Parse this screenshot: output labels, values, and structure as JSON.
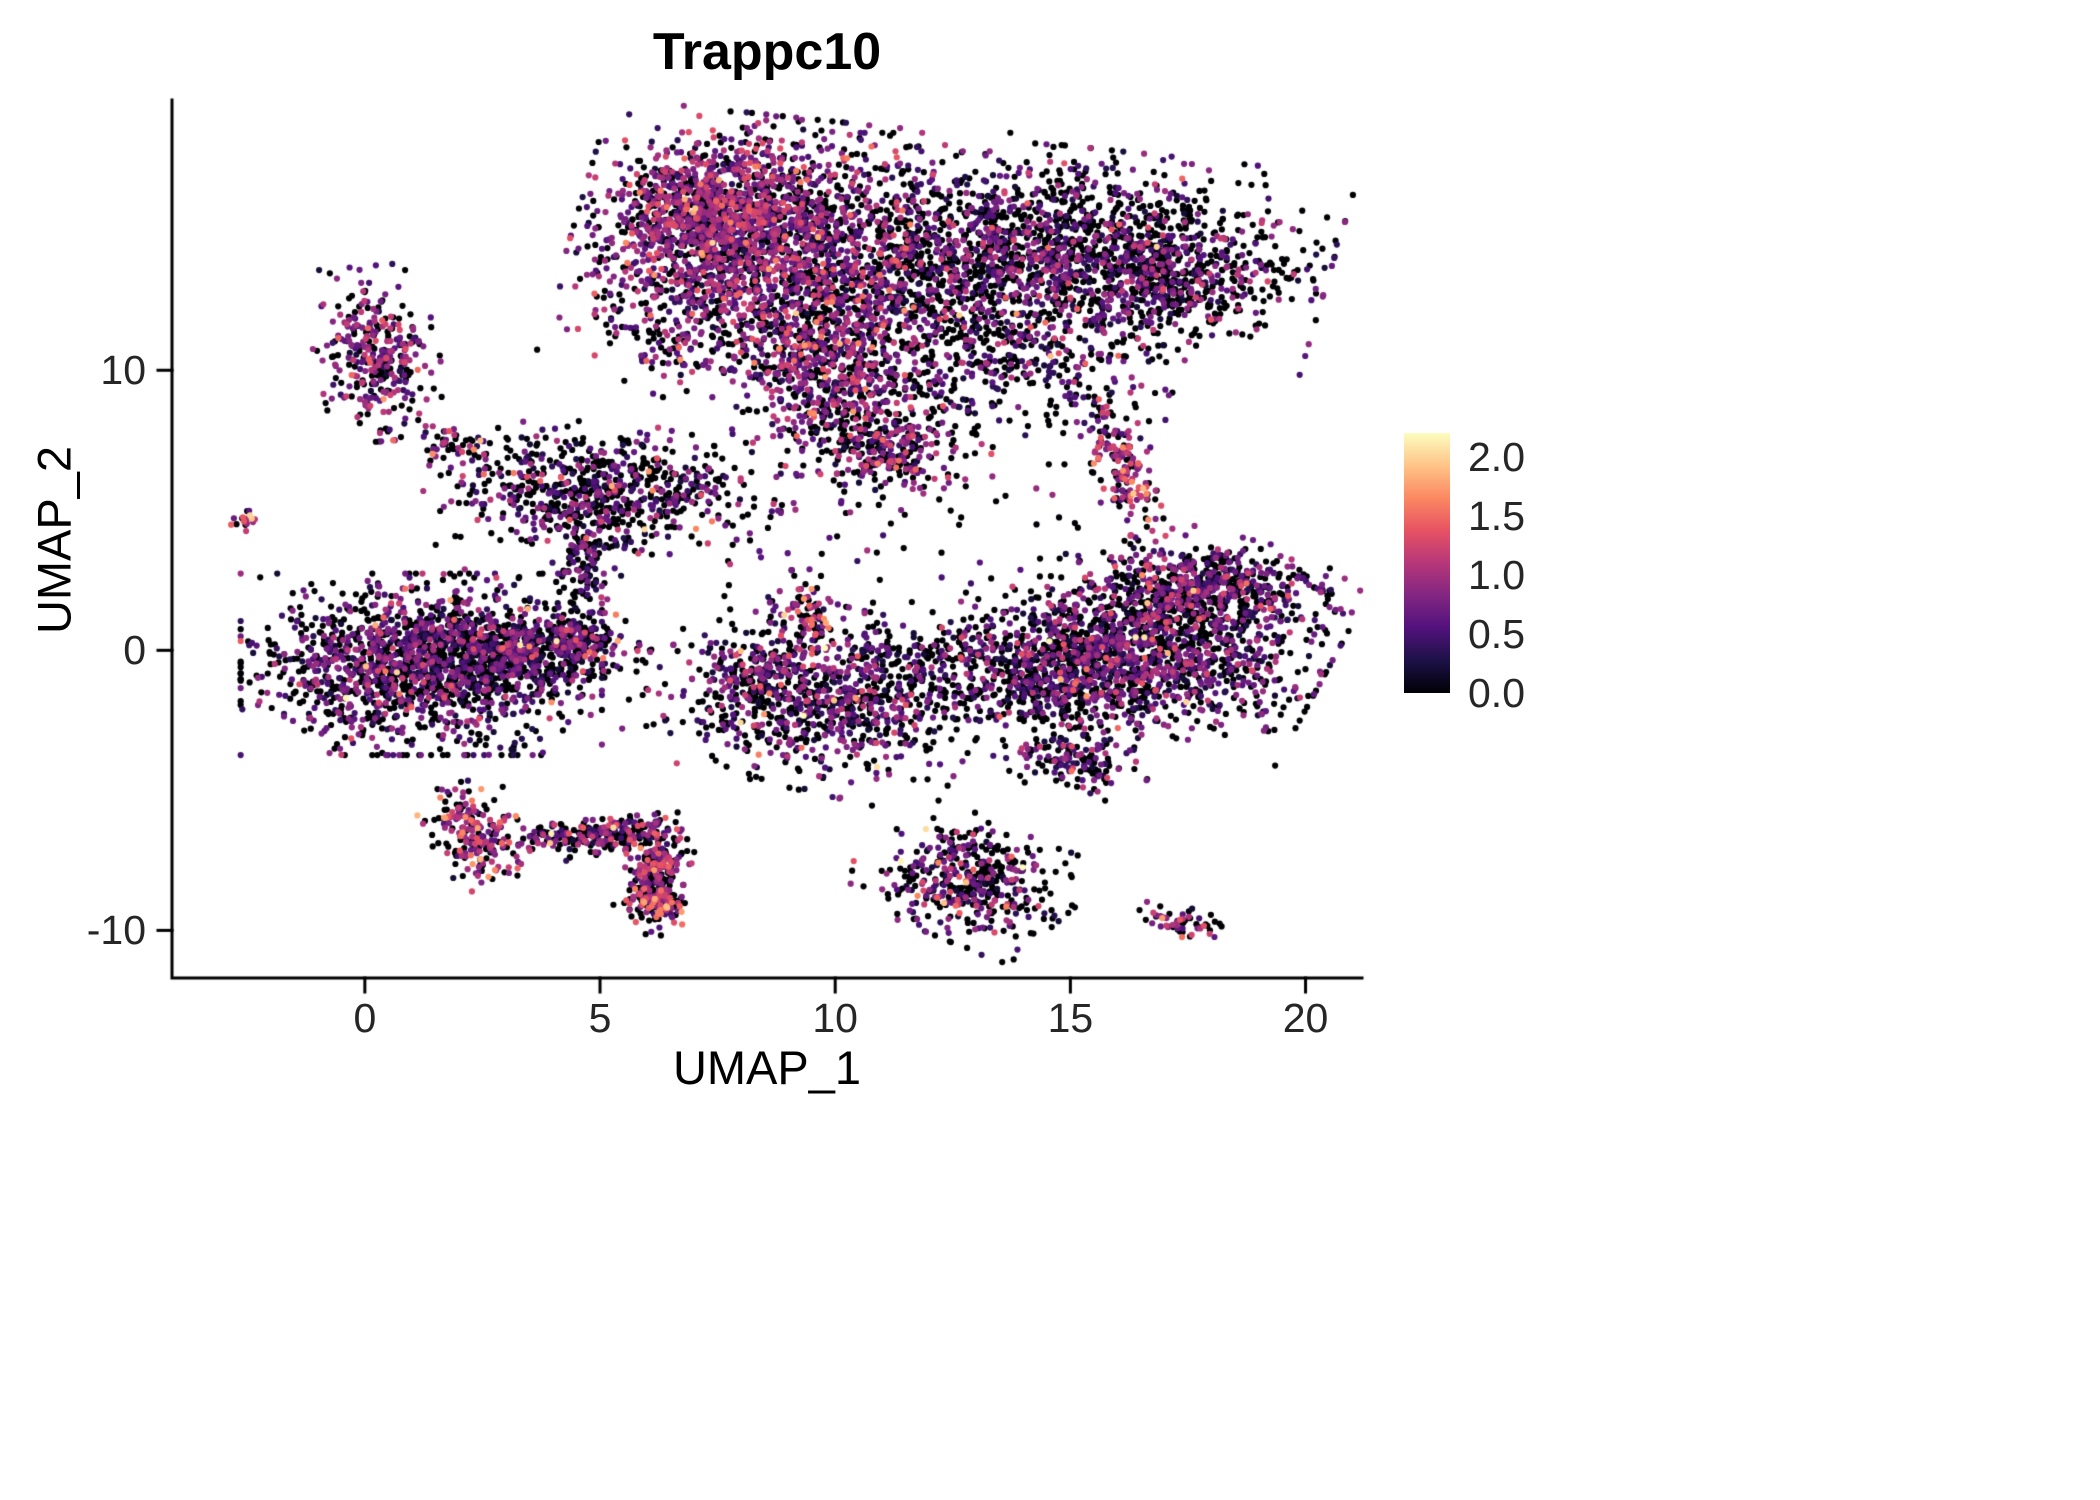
{
  "chart_data": {
    "type": "scatter",
    "title": "Trappc10",
    "xlabel": "UMAP_1",
    "ylabel": "UMAP_2",
    "xlim": [
      -4.1,
      21.2
    ],
    "ylim": [
      -11.7,
      19.65
    ],
    "xticks": [
      0,
      5,
      10,
      15,
      20
    ],
    "xtick_labels": [
      "0",
      "5",
      "10",
      "15",
      "20"
    ],
    "yticks": [
      10,
      0,
      -10
    ],
    "ytick_labels": [
      "10",
      "0",
      "-10"
    ],
    "grid": false,
    "legend": {
      "position": "right",
      "min": 0,
      "max": 2.2,
      "tick_values": [
        2.0,
        1.5,
        1.0,
        0.5,
        0.0
      ],
      "tick_labels": [
        "2.0",
        "1.5",
        "1.0",
        "0.5",
        "0.0"
      ]
    },
    "colormap": {
      "name": "magma",
      "stops": [
        [
          0.0,
          "#000004"
        ],
        [
          0.125,
          "#1d1147"
        ],
        [
          0.25,
          "#51127c"
        ],
        [
          0.375,
          "#822681"
        ],
        [
          0.5,
          "#b73779"
        ],
        [
          0.625,
          "#e75263"
        ],
        [
          0.75,
          "#fb8861"
        ],
        [
          0.875,
          "#fec488"
        ],
        [
          1.0,
          "#fcfdbf"
        ]
      ]
    },
    "point_radius_px": 3.1,
    "seed": 42,
    "clusters": [
      {
        "name": "top-left-lobe",
        "cx": 8.0,
        "cy": 14.6,
        "rx": 1.5,
        "ry": 1.9,
        "rot": -10,
        "n": 1600,
        "p0": 0.35,
        "mean": 0.8,
        "hot": 0.01
      },
      {
        "name": "top-upper-core",
        "cx": 7.3,
        "cy": 15.8,
        "rx": 1.0,
        "ry": 0.9,
        "rot": 0,
        "n": 550,
        "p0": 0.3,
        "mean": 0.85,
        "hot": 0.01
      },
      {
        "name": "top-mid",
        "cx": 10.8,
        "cy": 13.2,
        "rx": 1.6,
        "ry": 2.2,
        "rot": 0,
        "n": 750,
        "p0": 0.5,
        "mean": 0.7,
        "hot": 0.01
      },
      {
        "name": "top-mid-fill",
        "cx": 12.8,
        "cy": 13.5,
        "rx": 1.2,
        "ry": 1.8,
        "rot": 0,
        "n": 300,
        "p0": 0.55,
        "mean": 0.65,
        "hot": 0.01
      },
      {
        "name": "top-right",
        "cx": 15.3,
        "cy": 14.3,
        "rx": 2.2,
        "ry": 1.5,
        "rot": -10,
        "n": 1400,
        "p0": 0.55,
        "mean": 0.65,
        "hot": 0.01
      },
      {
        "name": "top-right-edge",
        "cx": 17.2,
        "cy": 13.0,
        "rx": 0.9,
        "ry": 0.8,
        "rot": 35,
        "n": 250,
        "p0": 0.6,
        "mean": 0.6,
        "hot": 0.01
      },
      {
        "name": "top-hanging-lobe",
        "cx": 9.8,
        "cy": 9.9,
        "rx": 0.9,
        "ry": 1.5,
        "rot": 5,
        "n": 550,
        "p0": 0.4,
        "mean": 0.85,
        "hot": 0.02
      },
      {
        "name": "top-hook-tail",
        "cx": 11.2,
        "cy": 7.3,
        "rx": 0.75,
        "ry": 0.9,
        "rot": 25,
        "n": 280,
        "p0": 0.45,
        "mean": 0.8,
        "hot": 0.04
      },
      {
        "name": "top-se-sparse",
        "cx": 13.8,
        "cy": 10.0,
        "rx": 1.8,
        "ry": 1.4,
        "rot": 0,
        "n": 350,
        "p0": 0.55,
        "mean": 0.6,
        "hot": 0.01
      },
      {
        "name": "top-left-stray",
        "cx": 6.4,
        "cy": 11.2,
        "rx": 0.7,
        "ry": 0.9,
        "rot": 0,
        "n": 80,
        "p0": 0.45,
        "mean": 0.7,
        "hot": 0.01
      },
      {
        "name": "left-small-cluster",
        "cx": 0.25,
        "cy": 10.6,
        "rx": 0.55,
        "ry": 1.3,
        "rot": 8,
        "n": 330,
        "p0": 0.4,
        "mean": 0.8,
        "hot": 0.01
      },
      {
        "name": "far-left-dot",
        "cx": -2.55,
        "cy": 4.6,
        "rx": 0.16,
        "ry": 0.16,
        "rot": 0,
        "n": 16,
        "p0": 0.35,
        "mean": 1.0,
        "hot": 0.05
      },
      {
        "name": "mid-left-cluster",
        "cx": 5.0,
        "cy": 5.7,
        "rx": 1.55,
        "ry": 1.0,
        "rot": -8,
        "n": 700,
        "p0": 0.58,
        "mean": 0.65,
        "hot": 0.025
      },
      {
        "name": "mid-left-tail",
        "cx": 4.7,
        "cy": 3.2,
        "rx": 0.3,
        "ry": 1.2,
        "rot": -5,
        "n": 120,
        "p0": 0.6,
        "mean": 0.55,
        "hot": 0.01
      },
      {
        "name": "sparse-upper-left",
        "cx": 1.9,
        "cy": 7.4,
        "rx": 0.4,
        "ry": 0.25,
        "rot": -25,
        "n": 40,
        "p0": 0.45,
        "mean": 0.8,
        "hot": 0.02
      },
      {
        "name": "left-main-blob",
        "cx": 1.2,
        "cy": -0.5,
        "rx": 1.6,
        "ry": 1.35,
        "rot": 0,
        "n": 1600,
        "p0": 0.5,
        "mean": 0.65,
        "hot": 0.012
      },
      {
        "name": "left-main-taper",
        "cx": 3.6,
        "cy": 0.0,
        "rx": 1.0,
        "ry": 0.7,
        "rot": -15,
        "n": 450,
        "p0": 0.55,
        "mean": 0.6,
        "hot": 0.01
      },
      {
        "name": "left-main-tip",
        "cx": 4.6,
        "cy": 0.45,
        "rx": 0.35,
        "ry": 0.3,
        "rot": 0,
        "n": 90,
        "p0": 0.45,
        "mean": 0.7,
        "hot": 0.01
      },
      {
        "name": "middle-main",
        "cx": 9.7,
        "cy": -1.7,
        "rx": 1.5,
        "ry": 1.35,
        "rot": -20,
        "n": 850,
        "p0": 0.5,
        "mean": 0.65,
        "hot": 0.015
      },
      {
        "name": "middle-left-spur",
        "cx": 8.4,
        "cy": -0.7,
        "rx": 0.45,
        "ry": 0.55,
        "rot": -30,
        "n": 120,
        "p0": 0.45,
        "mean": 0.8,
        "hot": 0.02
      },
      {
        "name": "middle-up-arm",
        "cx": 9.45,
        "cy": 1.1,
        "rx": 0.3,
        "ry": 0.75,
        "rot": 10,
        "n": 90,
        "p0": 0.35,
        "mean": 1.0,
        "hot": 0.08
      },
      {
        "name": "middle-right-sparse",
        "cx": 13.0,
        "cy": -0.7,
        "rx": 1.5,
        "ry": 0.9,
        "rot": -10,
        "n": 280,
        "p0": 0.6,
        "mean": 0.55,
        "hot": 0.01
      },
      {
        "name": "right-main",
        "cx": 16.4,
        "cy": 0.0,
        "rx": 1.7,
        "ry": 1.25,
        "rot": -18,
        "n": 1400,
        "p0": 0.5,
        "mean": 0.65,
        "hot": 0.012
      },
      {
        "name": "right-upper",
        "cx": 17.3,
        "cy": 1.9,
        "rx": 0.9,
        "ry": 0.7,
        "rot": -25,
        "n": 260,
        "p0": 0.5,
        "mean": 0.7,
        "hot": 0.01
      },
      {
        "name": "right-ne-arm",
        "cx": 18.6,
        "cy": 2.5,
        "rx": 1.1,
        "ry": 0.6,
        "rot": -22,
        "n": 320,
        "p0": 0.5,
        "mean": 0.7,
        "hot": 0.01
      },
      {
        "name": "right-sw-lobe",
        "cx": 14.8,
        "cy": -1.6,
        "rx": 0.8,
        "ry": 0.7,
        "rot": -20,
        "n": 220,
        "p0": 0.55,
        "mean": 0.6,
        "hot": 0.01
      },
      {
        "name": "right-vertical-small",
        "cx": 16.1,
        "cy": 6.6,
        "rx": 0.3,
        "ry": 1.1,
        "rot": 12,
        "n": 160,
        "p0": 0.35,
        "mean": 1.0,
        "hot": 0.07
      },
      {
        "name": "below-right-small",
        "cx": 15.1,
        "cy": -3.9,
        "rx": 0.7,
        "ry": 0.5,
        "rot": -20,
        "n": 150,
        "p0": 0.55,
        "mean": 0.65,
        "hot": 0.01
      },
      {
        "name": "bottom-middle",
        "cx": 12.85,
        "cy": -8.2,
        "rx": 1.0,
        "ry": 0.85,
        "rot": -35,
        "n": 450,
        "p0": 0.55,
        "mean": 0.7,
        "hot": 0.03
      },
      {
        "name": "bottom-right-tiny",
        "cx": 17.4,
        "cy": -9.7,
        "rx": 0.42,
        "ry": 0.22,
        "rot": -15,
        "n": 60,
        "p0": 0.5,
        "mean": 0.9,
        "hot": 0.02
      },
      {
        "name": "bottom-left-dense",
        "cx": 2.35,
        "cy": -6.6,
        "rx": 0.42,
        "ry": 0.8,
        "rot": 15,
        "n": 210,
        "p0": 0.35,
        "mean": 1.0,
        "hot": 0.06
      },
      {
        "name": "arc-segment-1",
        "cx": 4.05,
        "cy": -6.6,
        "rx": 0.42,
        "ry": 0.22,
        "rot": 8,
        "n": 60,
        "p0": 0.5,
        "mean": 0.8,
        "hot": 0.02
      },
      {
        "name": "arc-segment-2",
        "cx": 5.35,
        "cy": -6.6,
        "rx": 0.6,
        "ry": 0.28,
        "rot": 12,
        "n": 200,
        "p0": 0.5,
        "mean": 0.85,
        "hot": 0.02
      },
      {
        "name": "arc-segment-3",
        "cx": 6.15,
        "cy": -8.1,
        "rx": 0.3,
        "ry": 0.85,
        "rot": -8,
        "n": 230,
        "p0": 0.45,
        "mean": 0.9,
        "hot": 0.04
      },
      {
        "name": "arc-end-blob",
        "cx": 6.3,
        "cy": -9.1,
        "rx": 0.28,
        "ry": 0.33,
        "rot": 0,
        "n": 110,
        "p0": 0.4,
        "mean": 1.0,
        "hot": 0.06
      },
      {
        "name": "stray-a",
        "cx": 3.2,
        "cy": 2.2,
        "rx": 1.2,
        "ry": 1.2,
        "rot": 0,
        "n": 25,
        "p0": 0.5,
        "mean": 0.6,
        "hot": 0.01
      },
      {
        "name": "stray-b",
        "cx": 13.5,
        "cy": 4.8,
        "rx": 2.0,
        "ry": 1.3,
        "rot": 0,
        "n": 20,
        "p0": 0.55,
        "mean": 0.6,
        "hot": 0.01
      },
      {
        "name": "stray-c",
        "cx": 9.0,
        "cy": 4.8,
        "rx": 2.2,
        "ry": 1.6,
        "rot": 0,
        "n": 40,
        "p0": 0.5,
        "mean": 0.6,
        "hot": 0.01
      }
    ]
  }
}
